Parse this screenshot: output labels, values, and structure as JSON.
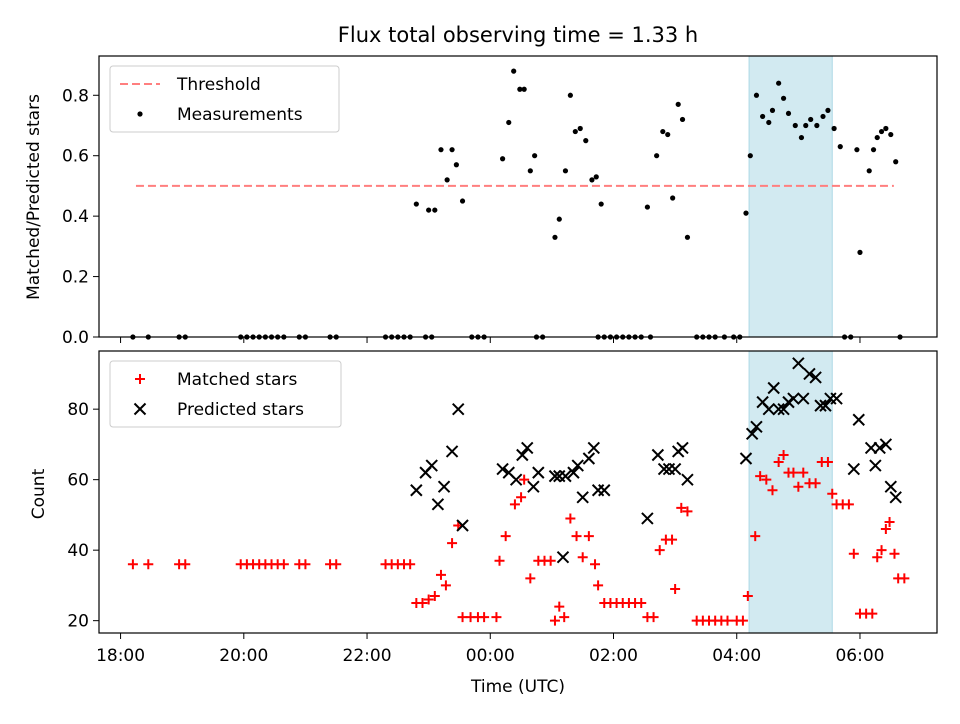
{
  "figure": {
    "title": "Flux total observing time = 1.33 h",
    "xlabel": "Time (UTC)",
    "x_ticks": [
      "18:00",
      "20:00",
      "22:00",
      "00:00",
      "02:00",
      "04:00",
      "06:00"
    ],
    "x_tick_values": [
      -6.0,
      -4.0,
      -2.0,
      0.0,
      2.0,
      4.0,
      6.0
    ],
    "xlim": [
      -6.35,
      7.25
    ],
    "shaded_span": [
      4.2,
      5.55
    ],
    "shade_color": "#add8e6"
  },
  "chart_data": [
    {
      "type": "scatter",
      "ylabel": "Matched/Predicted stars",
      "ylim": [
        0.0,
        0.93
      ],
      "y_ticks": [
        "0.0",
        "0.2",
        "0.4",
        "0.6",
        "0.8"
      ],
      "y_tick_values": [
        0.0,
        0.2,
        0.4,
        0.6,
        0.8
      ],
      "legend": [
        "Threshold",
        "Measurements"
      ],
      "legend_loc": "upper left",
      "threshold": {
        "name": "Threshold",
        "y": 0.5,
        "x": [
          -5.75,
          6.55
        ],
        "color": "#ff7f7f"
      },
      "series": [
        {
          "name": "Measurements",
          "color": "#000000",
          "points": [
            [
              -5.8,
              0
            ],
            [
              -5.55,
              0
            ],
            [
              -5.05,
              0
            ],
            [
              -4.95,
              0
            ],
            [
              -4.05,
              0
            ],
            [
              -3.95,
              0
            ],
            [
              -3.85,
              0
            ],
            [
              -3.75,
              0
            ],
            [
              -3.65,
              0
            ],
            [
              -3.55,
              0
            ],
            [
              -3.45,
              0
            ],
            [
              -3.35,
              0
            ],
            [
              -3.1,
              0
            ],
            [
              -3.0,
              0
            ],
            [
              -2.6,
              0
            ],
            [
              -2.5,
              0
            ],
            [
              -1.7,
              0
            ],
            [
              -1.6,
              0
            ],
            [
              -1.5,
              0
            ],
            [
              -1.4,
              0
            ],
            [
              -1.3,
              0
            ],
            [
              -1.05,
              0
            ],
            [
              -0.95,
              0
            ],
            [
              -0.3,
              0
            ],
            [
              -0.2,
              0
            ],
            [
              -0.1,
              0
            ],
            [
              0.75,
              0
            ],
            [
              0.85,
              0
            ],
            [
              1.75,
              0
            ],
            [
              1.85,
              0
            ],
            [
              1.95,
              0
            ],
            [
              2.05,
              0
            ],
            [
              2.15,
              0
            ],
            [
              2.25,
              0
            ],
            [
              2.35,
              0
            ],
            [
              2.45,
              0
            ],
            [
              2.6,
              0
            ],
            [
              3.35,
              0
            ],
            [
              3.45,
              0
            ],
            [
              3.55,
              0
            ],
            [
              3.65,
              0
            ],
            [
              3.8,
              0
            ],
            [
              3.95,
              0
            ],
            [
              4.05,
              0
            ],
            [
              5.75,
              0
            ],
            [
              5.85,
              0
            ],
            [
              6.65,
              0
            ],
            [
              -1.2,
              0.44
            ],
            [
              -1.0,
              0.42
            ],
            [
              -0.9,
              0.42
            ],
            [
              -0.8,
              0.62
            ],
            [
              -0.7,
              0.52
            ],
            [
              -0.62,
              0.62
            ],
            [
              -0.55,
              0.57
            ],
            [
              -0.45,
              0.45
            ],
            [
              0.2,
              0.59
            ],
            [
              0.3,
              0.71
            ],
            [
              0.38,
              0.88
            ],
            [
              0.48,
              0.82
            ],
            [
              0.55,
              0.82
            ],
            [
              0.65,
              0.55
            ],
            [
              0.72,
              0.6
            ],
            [
              1.05,
              0.33
            ],
            [
              1.12,
              0.39
            ],
            [
              1.22,
              0.55
            ],
            [
              1.3,
              0.8
            ],
            [
              1.38,
              0.68
            ],
            [
              1.46,
              0.69
            ],
            [
              1.55,
              0.65
            ],
            [
              1.65,
              0.52
            ],
            [
              1.72,
              0.53
            ],
            [
              1.8,
              0.44
            ],
            [
              2.55,
              0.43
            ],
            [
              2.7,
              0.6
            ],
            [
              2.8,
              0.68
            ],
            [
              2.88,
              0.67
            ],
            [
              2.96,
              0.46
            ],
            [
              3.05,
              0.77
            ],
            [
              3.12,
              0.72
            ],
            [
              3.2,
              0.33
            ],
            [
              4.15,
              0.41
            ],
            [
              4.22,
              0.6
            ],
            [
              4.32,
              0.8
            ],
            [
              4.42,
              0.73
            ],
            [
              4.52,
              0.71
            ],
            [
              4.58,
              0.75
            ],
            [
              4.68,
              0.84
            ],
            [
              4.76,
              0.79
            ],
            [
              4.84,
              0.74
            ],
            [
              4.95,
              0.7
            ],
            [
              5.05,
              0.66
            ],
            [
              5.12,
              0.7
            ],
            [
              5.2,
              0.72
            ],
            [
              5.3,
              0.7
            ],
            [
              5.4,
              0.73
            ],
            [
              5.48,
              0.75
            ],
            [
              5.58,
              0.69
            ],
            [
              5.68,
              0.63
            ],
            [
              5.95,
              0.62
            ],
            [
              6.0,
              0.28
            ],
            [
              6.15,
              0.55
            ],
            [
              6.22,
              0.62
            ],
            [
              6.28,
              0.66
            ],
            [
              6.35,
              0.68
            ],
            [
              6.42,
              0.69
            ],
            [
              6.5,
              0.67
            ],
            [
              6.58,
              0.58
            ]
          ]
        }
      ]
    },
    {
      "type": "scatter",
      "ylabel": "Count",
      "ylim": [
        16.5,
        96.5
      ],
      "y_ticks": [
        "20",
        "40",
        "60",
        "80"
      ],
      "y_tick_values": [
        20,
        40,
        60,
        80
      ],
      "legend": [
        "Matched stars",
        "Predicted stars"
      ],
      "legend_loc": "upper left",
      "series": [
        {
          "name": "Matched stars",
          "marker": "+",
          "color": "#ff0000",
          "points": [
            [
              -5.8,
              36
            ],
            [
              -5.55,
              36
            ],
            [
              -5.05,
              36
            ],
            [
              -4.95,
              36
            ],
            [
              -4.05,
              36
            ],
            [
              -3.95,
              36
            ],
            [
              -3.85,
              36
            ],
            [
              -3.75,
              36
            ],
            [
              -3.65,
              36
            ],
            [
              -3.55,
              36
            ],
            [
              -3.45,
              36
            ],
            [
              -3.35,
              36
            ],
            [
              -3.1,
              36
            ],
            [
              -3.0,
              36
            ],
            [
              -2.6,
              36
            ],
            [
              -2.5,
              36
            ],
            [
              -1.7,
              36
            ],
            [
              -1.6,
              36
            ],
            [
              -1.5,
              36
            ],
            [
              -1.4,
              36
            ],
            [
              -1.3,
              36
            ],
            [
              -1.2,
              25
            ],
            [
              -1.1,
              25
            ],
            [
              -1.0,
              26
            ],
            [
              -0.9,
              27
            ],
            [
              -0.8,
              33
            ],
            [
              -0.72,
              30
            ],
            [
              -0.62,
              42
            ],
            [
              -0.52,
              47
            ],
            [
              -0.45,
              21
            ],
            [
              -0.32,
              21
            ],
            [
              -0.2,
              21
            ],
            [
              -0.1,
              21
            ],
            [
              0.1,
              21
            ],
            [
              0.15,
              37
            ],
            [
              0.25,
              44
            ],
            [
              0.4,
              53
            ],
            [
              0.5,
              55
            ],
            [
              0.55,
              60
            ],
            [
              0.65,
              32
            ],
            [
              0.78,
              37
            ],
            [
              0.88,
              37
            ],
            [
              0.98,
              37
            ],
            [
              1.05,
              20
            ],
            [
              1.12,
              24
            ],
            [
              1.2,
              21
            ],
            [
              1.3,
              49
            ],
            [
              1.4,
              44
            ],
            [
              1.5,
              38
            ],
            [
              1.6,
              44
            ],
            [
              1.7,
              36
            ],
            [
              1.75,
              30
            ],
            [
              1.85,
              25
            ],
            [
              1.95,
              25
            ],
            [
              2.05,
              25
            ],
            [
              2.15,
              25
            ],
            [
              2.25,
              25
            ],
            [
              2.35,
              25
            ],
            [
              2.45,
              25
            ],
            [
              2.55,
              21
            ],
            [
              2.65,
              21
            ],
            [
              2.75,
              40
            ],
            [
              2.85,
              43
            ],
            [
              2.95,
              43
            ],
            [
              3.0,
              29
            ],
            [
              3.1,
              52
            ],
            [
              3.2,
              51
            ],
            [
              3.35,
              20
            ],
            [
              3.45,
              20
            ],
            [
              3.55,
              20
            ],
            [
              3.65,
              20
            ],
            [
              3.75,
              20
            ],
            [
              3.85,
              20
            ],
            [
              4.0,
              20
            ],
            [
              4.1,
              20
            ],
            [
              4.18,
              27
            ],
            [
              4.3,
              44
            ],
            [
              4.38,
              61
            ],
            [
              4.48,
              60
            ],
            [
              4.58,
              57
            ],
            [
              4.68,
              65
            ],
            [
              4.76,
              67
            ],
            [
              4.84,
              62
            ],
            [
              4.92,
              62
            ],
            [
              5.0,
              58
            ],
            [
              5.08,
              62
            ],
            [
              5.18,
              59
            ],
            [
              5.28,
              59
            ],
            [
              5.38,
              65
            ],
            [
              5.48,
              65
            ],
            [
              5.55,
              56
            ],
            [
              5.62,
              53
            ],
            [
              5.72,
              53
            ],
            [
              5.82,
              53
            ],
            [
              5.9,
              39
            ],
            [
              6.0,
              22
            ],
            [
              6.1,
              22
            ],
            [
              6.2,
              22
            ],
            [
              6.28,
              38
            ],
            [
              6.35,
              40
            ],
            [
              6.42,
              46
            ],
            [
              6.48,
              48
            ],
            [
              6.56,
              39
            ],
            [
              6.62,
              32
            ],
            [
              6.72,
              32
            ]
          ]
        },
        {
          "name": "Predicted stars",
          "marker": "x",
          "color": "#000000",
          "points": [
            [
              -1.2,
              57
            ],
            [
              -1.05,
              62
            ],
            [
              -0.95,
              64
            ],
            [
              -0.85,
              53
            ],
            [
              -0.75,
              58
            ],
            [
              -0.62,
              68
            ],
            [
              -0.52,
              80
            ],
            [
              -0.45,
              47
            ],
            [
              0.2,
              63
            ],
            [
              0.3,
              62
            ],
            [
              0.42,
              60
            ],
            [
              0.52,
              67
            ],
            [
              0.6,
              69
            ],
            [
              0.7,
              58
            ],
            [
              0.78,
              62
            ],
            [
              1.05,
              61
            ],
            [
              1.12,
              61
            ],
            [
              1.22,
              61
            ],
            [
              1.18,
              38
            ],
            [
              1.35,
              62
            ],
            [
              1.42,
              64
            ],
            [
              1.5,
              55
            ],
            [
              1.6,
              66
            ],
            [
              1.68,
              69
            ],
            [
              1.75,
              57
            ],
            [
              1.85,
              57
            ],
            [
              2.55,
              49
            ],
            [
              2.72,
              67
            ],
            [
              2.82,
              63
            ],
            [
              2.9,
              63
            ],
            [
              3.0,
              63
            ],
            [
              3.05,
              68
            ],
            [
              3.12,
              69
            ],
            [
              3.2,
              60
            ],
            [
              4.15,
              66
            ],
            [
              4.25,
              73
            ],
            [
              4.32,
              75
            ],
            [
              4.42,
              82
            ],
            [
              4.52,
              80
            ],
            [
              4.6,
              86
            ],
            [
              4.68,
              80
            ],
            [
              4.76,
              80
            ],
            [
              4.84,
              82
            ],
            [
              4.92,
              83
            ],
            [
              5.0,
              93
            ],
            [
              5.08,
              83
            ],
            [
              5.18,
              90
            ],
            [
              5.28,
              89
            ],
            [
              5.36,
              81
            ],
            [
              5.44,
              81
            ],
            [
              5.52,
              83
            ],
            [
              5.62,
              83
            ],
            [
              5.9,
              63
            ],
            [
              5.98,
              77
            ],
            [
              6.18,
              69
            ],
            [
              6.25,
              64
            ],
            [
              6.32,
              69
            ],
            [
              6.42,
              70
            ],
            [
              6.5,
              58
            ],
            [
              6.58,
              55
            ]
          ]
        }
      ]
    }
  ]
}
